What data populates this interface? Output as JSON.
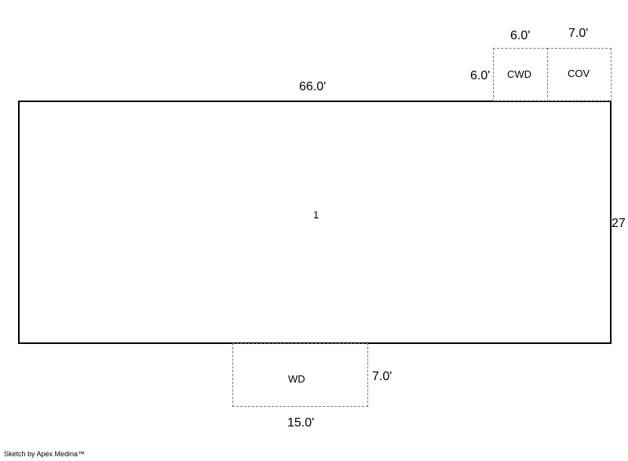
{
  "areas": {
    "main": {
      "label": "1",
      "width": "66.0'",
      "height": "27"
    },
    "cwd": {
      "label": "CWD",
      "width": "6.0'",
      "height": "6.0'"
    },
    "cov": {
      "label": "COV",
      "width": "7.0'"
    },
    "wd": {
      "label": "WD",
      "width": "15.0'",
      "height": "7.0'"
    }
  },
  "footer": "Sketch by Apex Medina™"
}
